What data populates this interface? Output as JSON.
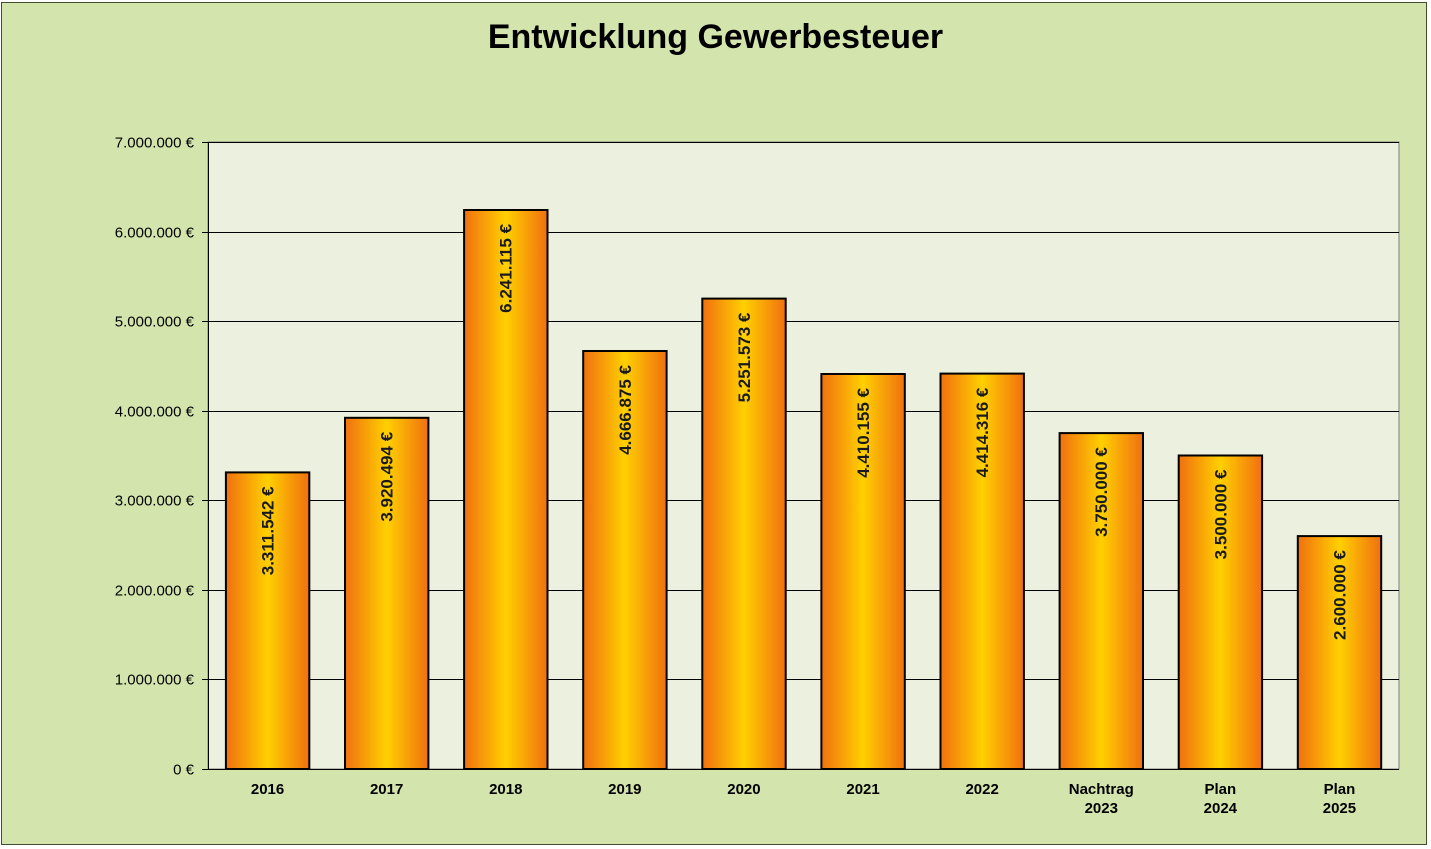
{
  "chart_data": {
    "type": "bar",
    "title": "Entwicklung Gewerbesteuer",
    "xlabel": "",
    "ylabel": "",
    "ylim": [
      0,
      7000000
    ],
    "y_ticks": [
      {
        "value": 0,
        "label": "0 €"
      },
      {
        "value": 1000000,
        "label": "1.000.000 €"
      },
      {
        "value": 2000000,
        "label": "2.000.000 €"
      },
      {
        "value": 3000000,
        "label": "3.000.000 €"
      },
      {
        "value": 4000000,
        "label": "4.000.000 €"
      },
      {
        "value": 5000000,
        "label": "5.000.000 €"
      },
      {
        "value": 6000000,
        "label": "6.000.000 €"
      },
      {
        "value": 7000000,
        "label": "7.000.000 €"
      }
    ],
    "categories": [
      [
        "2016"
      ],
      [
        "2017"
      ],
      [
        "2018"
      ],
      [
        "2019"
      ],
      [
        "2020"
      ],
      [
        "2021"
      ],
      [
        "2022"
      ],
      [
        "Nachtrag",
        "2023"
      ],
      [
        "Plan",
        "2024"
      ],
      [
        "Plan",
        "2025"
      ]
    ],
    "values": [
      3311542,
      3920494,
      6241115,
      4666875,
      5251573,
      4410155,
      4414316,
      3750000,
      3500000,
      2600000
    ],
    "value_labels": [
      "3.311.542 €",
      "3.920.494 €",
      "6.241.115 €",
      "4.666.875 €",
      "5.251.573 €",
      "4.410.155 €",
      "4.414.316 €",
      "3.750.000 €",
      "3.500.000 €",
      "2.600.000 €"
    ],
    "grid": true,
    "legend": "none",
    "colors": {
      "background": "#d3e5ad",
      "plot_area": "#ebf1de",
      "bar_edge": "#f07010",
      "bar_center": "#ffd000",
      "bar_border": "#000000"
    }
  }
}
